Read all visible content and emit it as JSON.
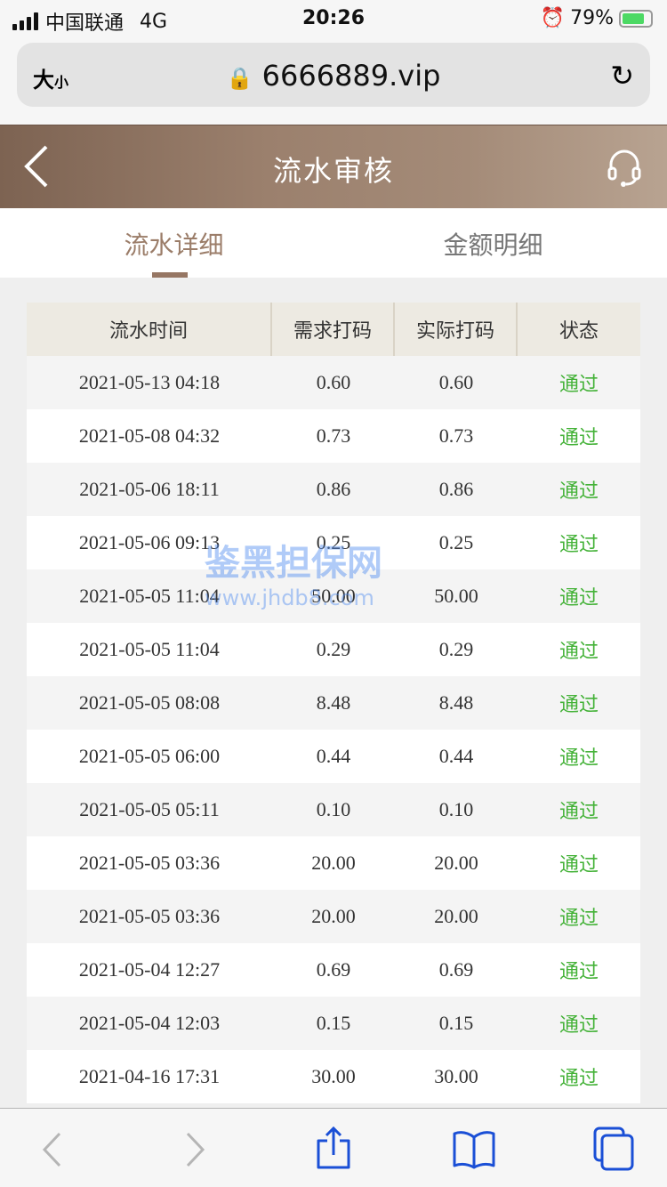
{
  "status_bar": {
    "carrier": "中国联通",
    "network": "4G",
    "time": "20:26",
    "battery": "79%",
    "battery_level": 0.79
  },
  "browser": {
    "text_size": "大",
    "text_size_small": "小",
    "url": "6666889.vip"
  },
  "header": {
    "title": "流水审核"
  },
  "tabs": [
    {
      "label": "流水详细",
      "active": true
    },
    {
      "label": "金额明细",
      "active": false
    }
  ],
  "table": {
    "columns": [
      "流水时间",
      "需求打码",
      "实际打码",
      "状态"
    ],
    "rows": [
      [
        "2021-05-13 04:18",
        "0.60",
        "0.60",
        "通过"
      ],
      [
        "2021-05-08 04:32",
        "0.73",
        "0.73",
        "通过"
      ],
      [
        "2021-05-06 18:11",
        "0.86",
        "0.86",
        "通过"
      ],
      [
        "2021-05-06 09:13",
        "0.25",
        "0.25",
        "通过"
      ],
      [
        "2021-05-05 11:04",
        "50.00",
        "50.00",
        "通过"
      ],
      [
        "2021-05-05 11:04",
        "0.29",
        "0.29",
        "通过"
      ],
      [
        "2021-05-05 08:08",
        "8.48",
        "8.48",
        "通过"
      ],
      [
        "2021-05-05 06:00",
        "0.44",
        "0.44",
        "通过"
      ],
      [
        "2021-05-05 05:11",
        "0.10",
        "0.10",
        "通过"
      ],
      [
        "2021-05-05 03:36",
        "20.00",
        "20.00",
        "通过"
      ],
      [
        "2021-05-05 03:36",
        "20.00",
        "20.00",
        "通过"
      ],
      [
        "2021-05-04 12:27",
        "0.69",
        "0.69",
        "通过"
      ],
      [
        "2021-05-04 12:03",
        "0.15",
        "0.15",
        "通过"
      ],
      [
        "2021-04-16 17:31",
        "30.00",
        "30.00",
        "通过"
      ]
    ]
  },
  "watermark": {
    "name": "鉴黑担保网",
    "url": "www.jhdb8.com"
  },
  "colors": {
    "status_pass": "#44b238",
    "accent": "#967663",
    "toolbar_icon": "#1a4fd6"
  }
}
